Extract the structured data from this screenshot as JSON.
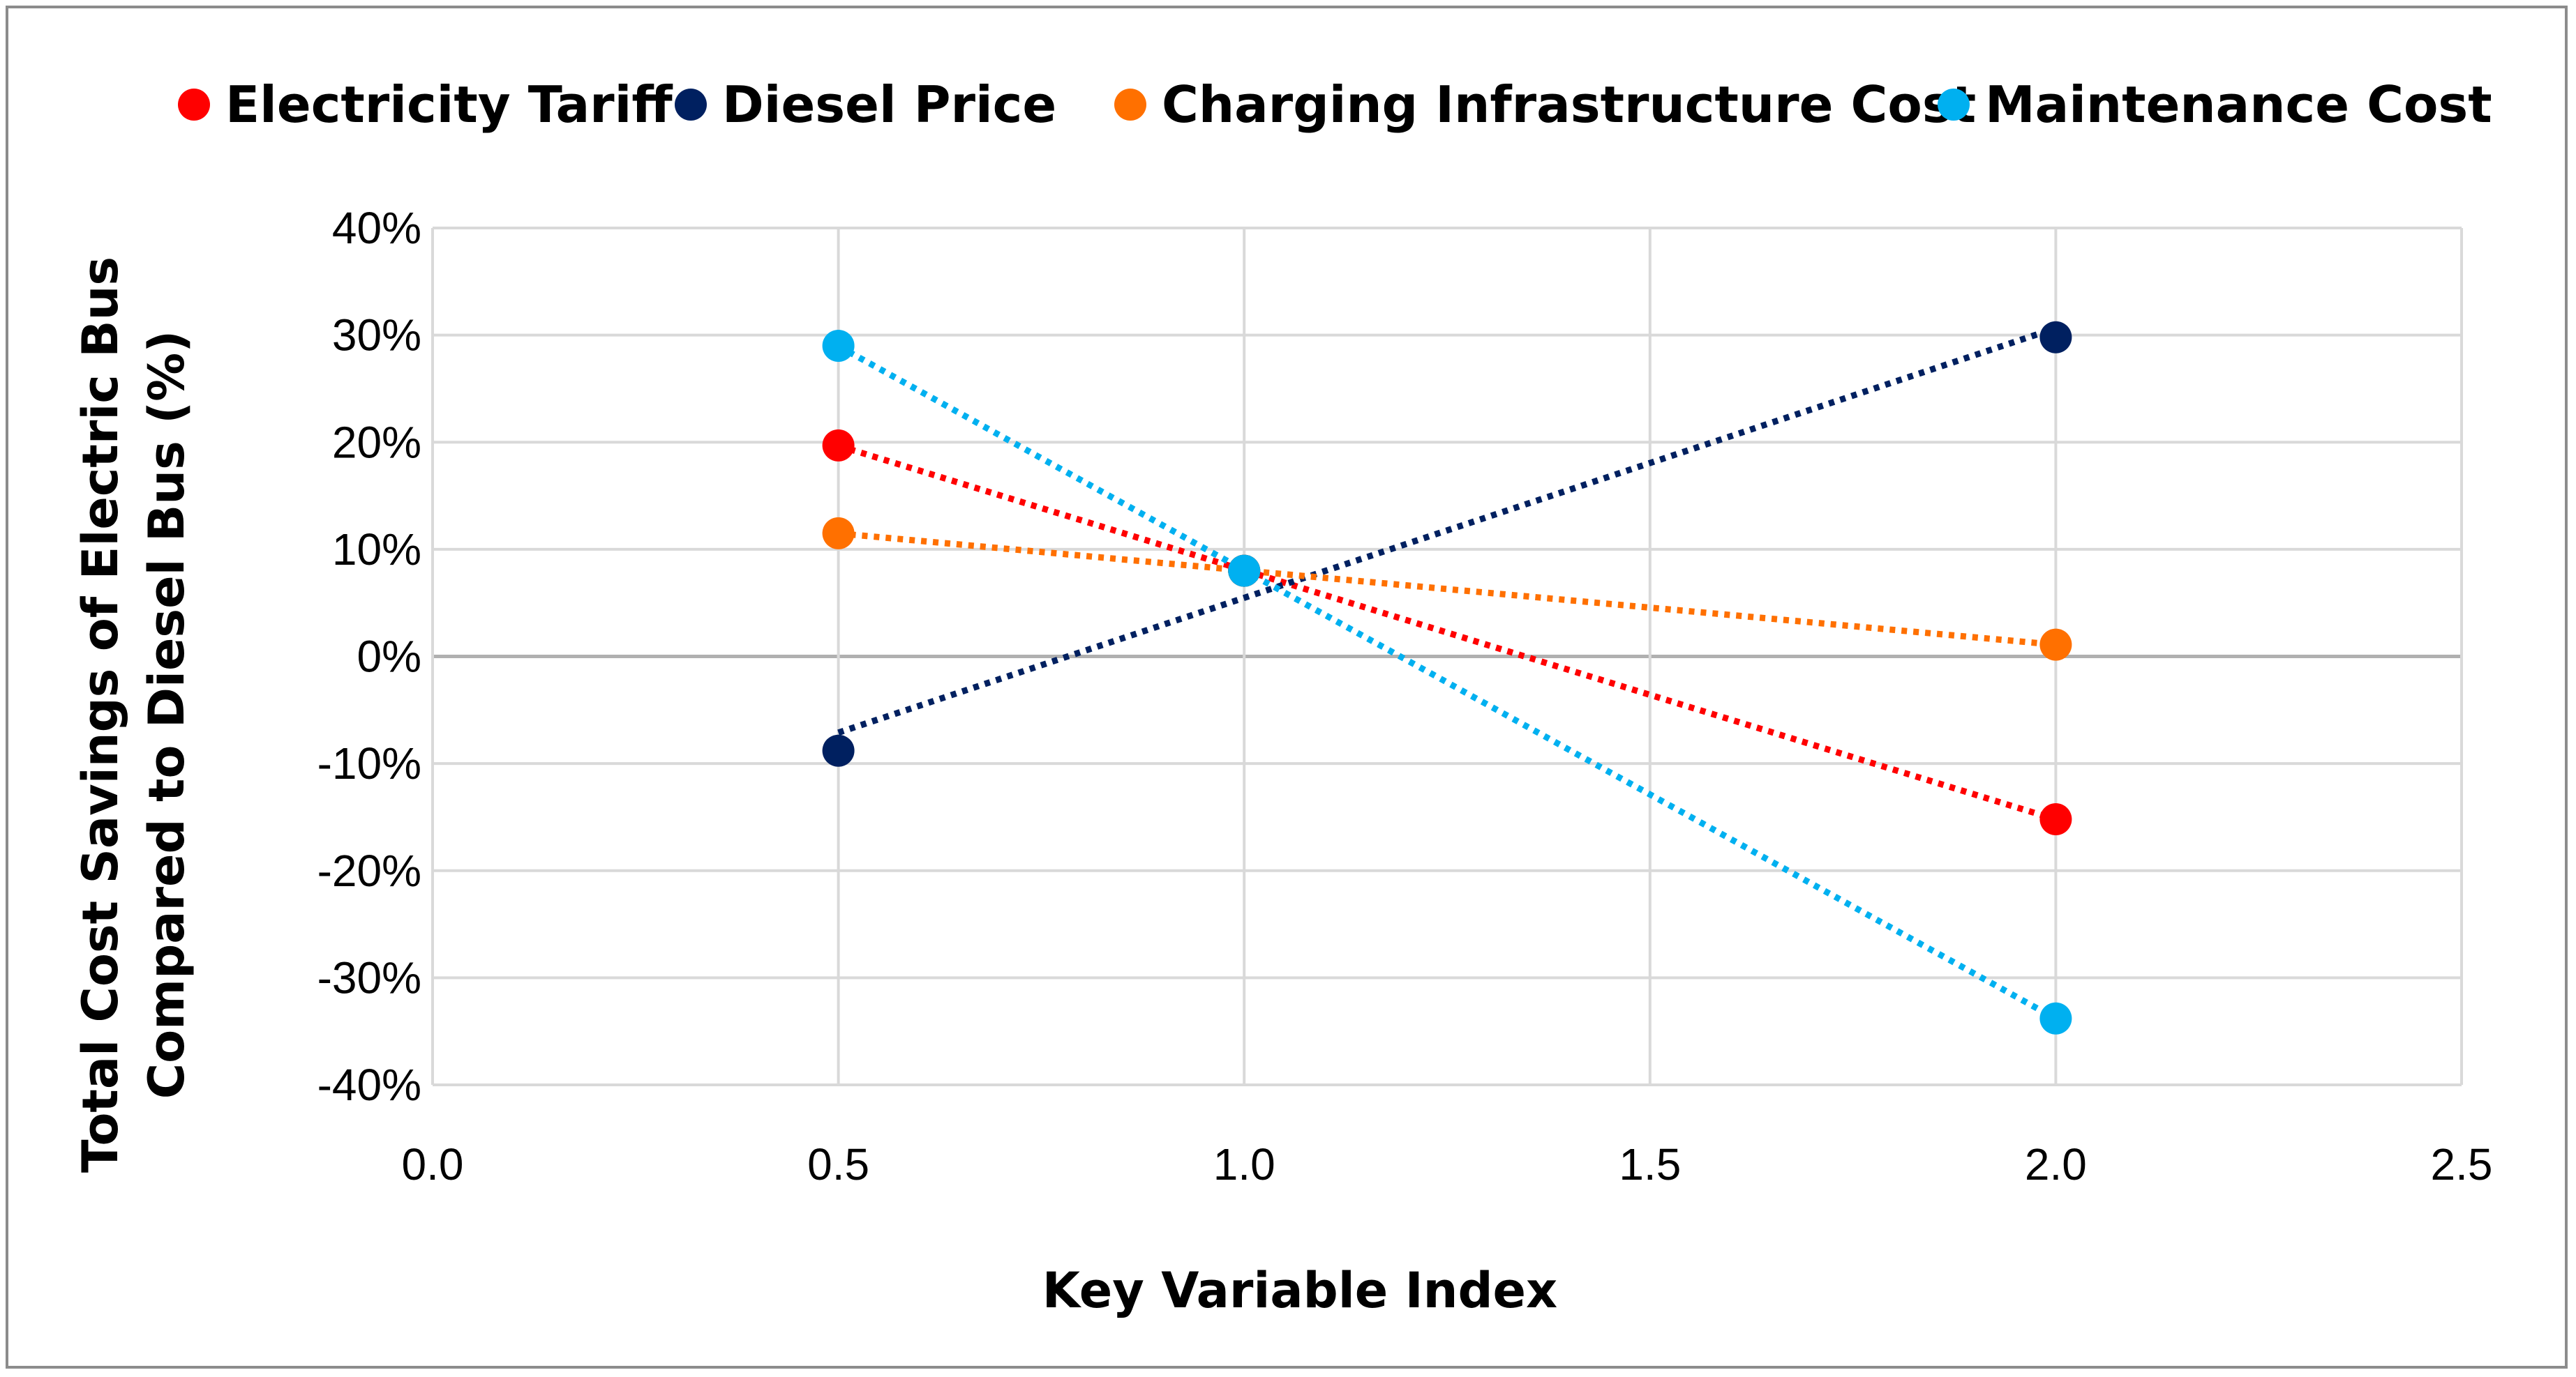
{
  "chart_data": {
    "type": "scatter",
    "title": "",
    "xlabel": "Key Variable Index",
    "ylabel_lines": [
      "Total Cost Savings of Electric Bus",
      "Compared to Diesel Bus (%)"
    ],
    "xlim": [
      0.0,
      2.5
    ],
    "ylim": [
      -40,
      40
    ],
    "x_ticks": [
      "0.0",
      "0.5",
      "1.0",
      "1.5",
      "2.0",
      "2.5"
    ],
    "y_ticks": [
      "40%",
      "30%",
      "20%",
      "10%",
      "0%",
      "-10%",
      "-20%",
      "-30%",
      "-40%"
    ],
    "grid": true,
    "legend_position": "top",
    "trendlines": "dotted linear",
    "series": [
      {
        "name": "Electricity Tariff",
        "color": "#ff0000",
        "x": [
          0.5,
          1.0,
          2.0
        ],
        "y": [
          19.7,
          8.0,
          -15.2
        ]
      },
      {
        "name": "Diesel Price",
        "color": "#002060",
        "x": [
          0.5,
          1.0,
          2.0
        ],
        "y": [
          -8.8,
          8.0,
          29.8
        ]
      },
      {
        "name": "Charging Infrastructure Cost",
        "color": "#ff7000",
        "x": [
          0.5,
          1.0,
          2.0
        ],
        "y": [
          11.5,
          8.0,
          1.1
        ]
      },
      {
        "name": "Maintenance Cost",
        "color": "#00b0f0",
        "x": [
          0.5,
          1.0,
          2.0
        ],
        "y": [
          29.0,
          8.0,
          -33.8
        ]
      }
    ]
  }
}
